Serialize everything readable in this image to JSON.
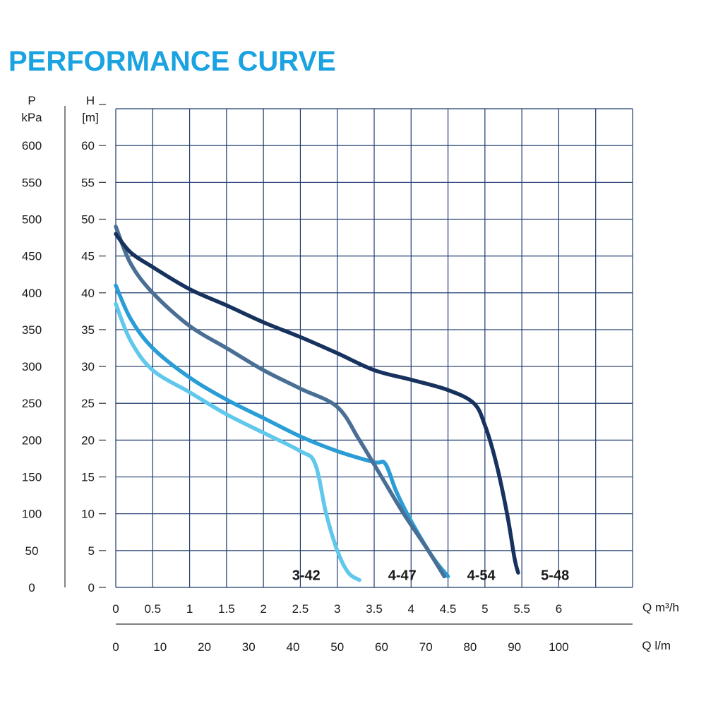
{
  "chart_data": {
    "type": "line",
    "title": "PERFORMANCE CURVE",
    "title_color": "#1aa3e0",
    "left_axis": {
      "label_line1": "P",
      "label_line2": "kPa",
      "ticks": [
        "0",
        "50",
        "100",
        "150",
        "200",
        "250",
        "300",
        "350",
        "400",
        "450",
        "500",
        "550",
        "600"
      ]
    },
    "y_axis": {
      "label_line1": "H",
      "label_line2": "[m]",
      "ticks": [
        0,
        5,
        10,
        15,
        20,
        25,
        30,
        35,
        40,
        45,
        50,
        55,
        60
      ],
      "range": [
        0,
        65
      ]
    },
    "x_axis": {
      "label": "Q m³/h",
      "ticks": [
        "0",
        "0.5",
        "1",
        "1.5",
        "2",
        "2.5",
        "3",
        "3.5",
        "4",
        "4.5",
        "5",
        "5.5",
        "6"
      ],
      "range": [
        0,
        7
      ]
    },
    "x2_axis": {
      "label": "Q l/m",
      "ticks": [
        "0",
        "10",
        "20",
        "30",
        "40",
        "50",
        "60",
        "70",
        "80",
        "90",
        "100"
      ]
    },
    "grid": true,
    "series": [
      {
        "name": "3-42",
        "color": "#5fc8ec",
        "points": [
          [
            0,
            38.5
          ],
          [
            0.2,
            33.5
          ],
          [
            0.5,
            29.5
          ],
          [
            1,
            26.5
          ],
          [
            1.5,
            23.5
          ],
          [
            2,
            21
          ],
          [
            2.5,
            18.5
          ],
          [
            2.7,
            16.8
          ],
          [
            2.85,
            10
          ],
          [
            3,
            5
          ],
          [
            3.15,
            2
          ],
          [
            3.3,
            1
          ]
        ]
      },
      {
        "name": "4-47",
        "color": "#2a9dd6",
        "points": [
          [
            0,
            41
          ],
          [
            0.2,
            36.5
          ],
          [
            0.5,
            32.5
          ],
          [
            1,
            28.5
          ],
          [
            1.5,
            25.5
          ],
          [
            2,
            23
          ],
          [
            2.5,
            20.5
          ],
          [
            3,
            18.5
          ],
          [
            3.5,
            17
          ],
          [
            3.65,
            16.8
          ],
          [
            3.8,
            13
          ],
          [
            4,
            9
          ],
          [
            4.3,
            4
          ],
          [
            4.5,
            1.5
          ]
        ]
      },
      {
        "name": "4-54",
        "color": "#4a6f94",
        "points": [
          [
            0,
            49
          ],
          [
            0.2,
            44
          ],
          [
            0.5,
            40
          ],
          [
            1,
            35.5
          ],
          [
            1.5,
            32.5
          ],
          [
            2,
            29.5
          ],
          [
            2.5,
            27
          ],
          [
            3,
            24.5
          ],
          [
            3.3,
            20
          ],
          [
            3.6,
            15
          ],
          [
            3.9,
            10
          ],
          [
            4.2,
            5.5
          ],
          [
            4.45,
            1.5
          ]
        ]
      },
      {
        "name": "5-48",
        "color": "#17325e",
        "points": [
          [
            0,
            48
          ],
          [
            0.2,
            45.5
          ],
          [
            0.5,
            43.5
          ],
          [
            1,
            40.5
          ],
          [
            1.5,
            38.3
          ],
          [
            2,
            36
          ],
          [
            2.5,
            34
          ],
          [
            3,
            31.8
          ],
          [
            3.5,
            29.5
          ],
          [
            4,
            28.2
          ],
          [
            4.5,
            26.8
          ],
          [
            4.85,
            25
          ],
          [
            5,
            22
          ],
          [
            5.15,
            17
          ],
          [
            5.3,
            10
          ],
          [
            5.4,
            4
          ],
          [
            5.45,
            2
          ]
        ]
      }
    ],
    "curve_labels": [
      {
        "text": "3-42",
        "x": 2.58,
        "y": 1.7
      },
      {
        "text": "4-47",
        "x": 3.88,
        "y": 1.7
      },
      {
        "text": "4-54",
        "x": 4.95,
        "y": 1.7
      },
      {
        "text": "5-48",
        "x": 5.95,
        "y": 1.7
      }
    ]
  }
}
